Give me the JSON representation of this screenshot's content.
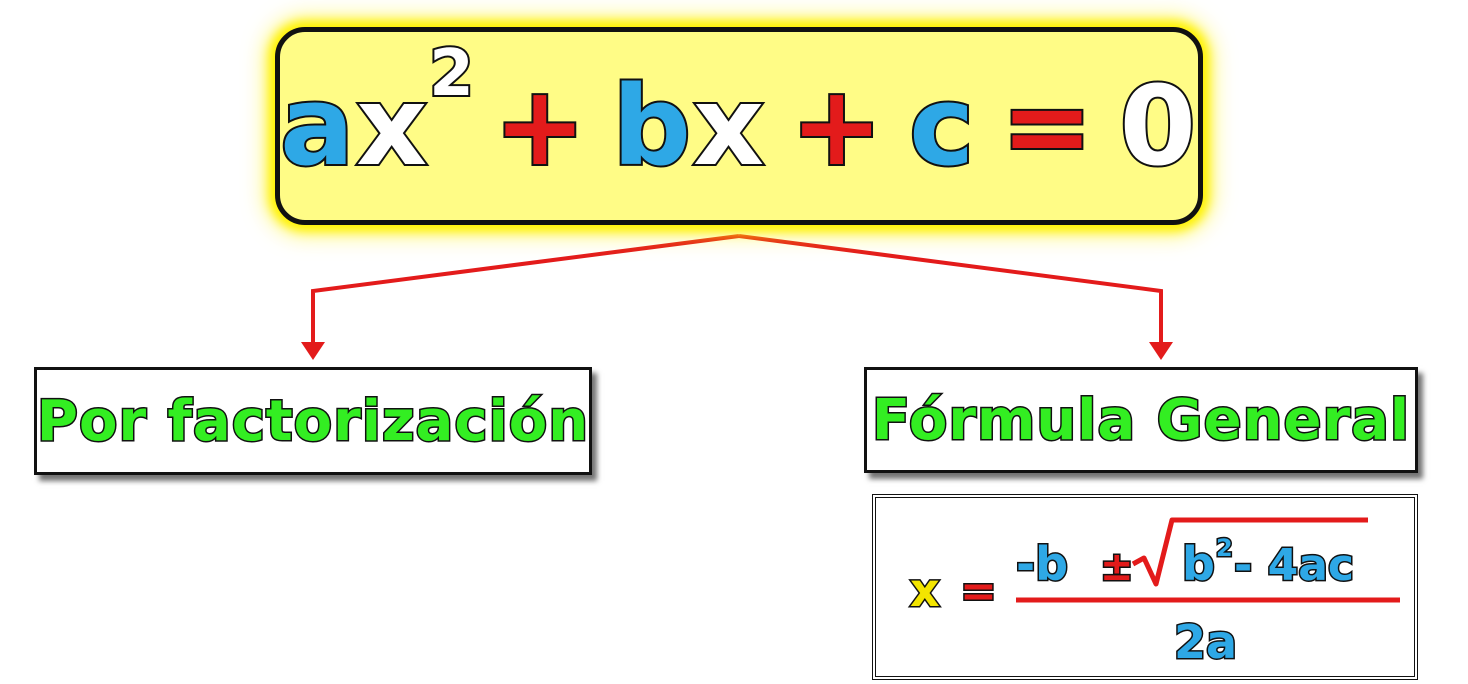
{
  "equation": {
    "a": "a",
    "x1": "x",
    "exponent": "2",
    "plus1": "+",
    "b": "b",
    "x2": "x",
    "plus2": "+",
    "c": "c",
    "equals": "=",
    "zero": "0"
  },
  "methods": {
    "factorization": "Por factorización",
    "general_formula": "Fórmula General"
  },
  "formula": {
    "x": "x",
    "equals": "=",
    "minus_b": "-b",
    "plus_minus": "±",
    "b": "b",
    "exponent": "2",
    "minus_4ac": "- 4ac",
    "denominator": "2a"
  },
  "colors": {
    "equation_box_fill": "#fffc86",
    "equation_box_glow": "#fff200",
    "coefficient_blue": "#2ea8e6",
    "operator_red": "#e31b1b",
    "method_label_green": "#33ee22",
    "formula_x_yellow": "#f3e500",
    "connector_red": "#e31b1b"
  }
}
